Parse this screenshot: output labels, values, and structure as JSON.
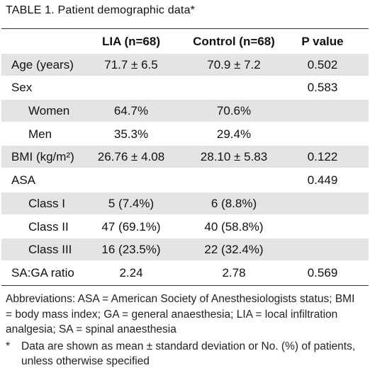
{
  "title": "TABLE 1. Patient demographic data*",
  "table": {
    "header": {
      "lia": "LIA (n=68)",
      "control": "Control (n=68)",
      "p": "P value"
    },
    "rows": [
      {
        "label": "Age (years)",
        "lia": "71.7 ± 6.5",
        "control": "70.9 ± 7.2",
        "p": "0.502"
      },
      {
        "label": "Sex",
        "p": "0.583",
        "items": [
          {
            "label": "Women",
            "lia": "64.7%",
            "control": "70.6%"
          },
          {
            "label": "Men",
            "lia": "35.3%",
            "control": "29.4%"
          }
        ]
      },
      {
        "label": "BMI (kg/m²)",
        "lia": "26.76 ± 4.08",
        "control": "28.10 ± 5.83",
        "p": "0.122"
      },
      {
        "label": "ASA",
        "p": "0.449",
        "items": [
          {
            "label": "Class I",
            "lia": "5 (7.4%)",
            "control": "6 (8.8%)"
          },
          {
            "label": "Class II",
            "lia": "47 (69.1%)",
            "control": "40 (58.8%)"
          },
          {
            "label": "Class III",
            "lia": "16 (23.5%)",
            "control": "22 (32.4%)"
          }
        ]
      },
      {
        "label": "SA:GA ratio",
        "lia": "2.24",
        "control": "2.78",
        "p": "0.569"
      }
    ]
  },
  "footnotes": {
    "abbreviations": "Abbreviations: ASA = American Society of Anesthesiologists status; BMI = body mass index; GA = general anaesthesia; LIA = local infiltration analgesia; SA = spinal anaesthesia",
    "marker": "*",
    "note": "Data are shown as mean ± standard deviation or No. (%) of patients, unless otherwise specified"
  }
}
